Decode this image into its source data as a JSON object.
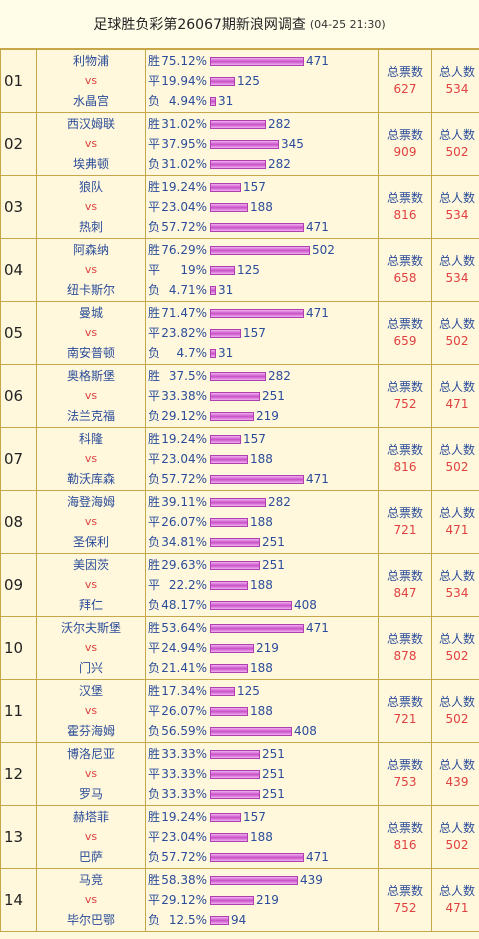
{
  "header": {
    "title": "足球胜负彩第26067期新浪网调查",
    "date": "(04-25 21:30)"
  },
  "labels": {
    "win": "胜",
    "draw": "平",
    "loss": "负",
    "total_votes": "总票数",
    "total_people": "总人数",
    "vs": "vs"
  },
  "matches": [
    {
      "num": "01",
      "home": "利物浦",
      "away": "水晶宫",
      "win": {
        "pct": "75.12%",
        "count": "471"
      },
      "draw": {
        "pct": "19.94%",
        "count": "125"
      },
      "loss": {
        "pct": "4.94%",
        "count": "31"
      },
      "votes": "627",
      "people": "534"
    },
    {
      "num": "02",
      "home": "西汉姆联",
      "away": "埃弗顿",
      "win": {
        "pct": "31.02%",
        "count": "282"
      },
      "draw": {
        "pct": "37.95%",
        "count": "345"
      },
      "loss": {
        "pct": "31.02%",
        "count": "282"
      },
      "votes": "909",
      "people": "502"
    },
    {
      "num": "03",
      "home": "狼队",
      "away": "热刺",
      "win": {
        "pct": "19.24%",
        "count": "157"
      },
      "draw": {
        "pct": "23.04%",
        "count": "188"
      },
      "loss": {
        "pct": "57.72%",
        "count": "471"
      },
      "votes": "816",
      "people": "534"
    },
    {
      "num": "04",
      "home": "阿森纳",
      "away": "纽卡斯尔",
      "win": {
        "pct": "76.29%",
        "count": "502"
      },
      "draw": {
        "pct": "19%",
        "count": "125"
      },
      "loss": {
        "pct": "4.71%",
        "count": "31"
      },
      "votes": "658",
      "people": "534"
    },
    {
      "num": "05",
      "home": "曼城",
      "away": "南安普顿",
      "win": {
        "pct": "71.47%",
        "count": "471"
      },
      "draw": {
        "pct": "23.82%",
        "count": "157"
      },
      "loss": {
        "pct": "4.7%",
        "count": "31"
      },
      "votes": "659",
      "people": "502"
    },
    {
      "num": "06",
      "home": "奥格斯堡",
      "away": "法兰克福",
      "win": {
        "pct": "37.5%",
        "count": "282"
      },
      "draw": {
        "pct": "33.38%",
        "count": "251"
      },
      "loss": {
        "pct": "29.12%",
        "count": "219"
      },
      "votes": "752",
      "people": "471"
    },
    {
      "num": "07",
      "home": "科隆",
      "away": "勒沃库森",
      "win": {
        "pct": "19.24%",
        "count": "157"
      },
      "draw": {
        "pct": "23.04%",
        "count": "188"
      },
      "loss": {
        "pct": "57.72%",
        "count": "471"
      },
      "votes": "816",
      "people": "502"
    },
    {
      "num": "08",
      "home": "海登海姆",
      "away": "圣保利",
      "win": {
        "pct": "39.11%",
        "count": "282"
      },
      "draw": {
        "pct": "26.07%",
        "count": "188"
      },
      "loss": {
        "pct": "34.81%",
        "count": "251"
      },
      "votes": "721",
      "people": "471"
    },
    {
      "num": "09",
      "home": "美因茨",
      "away": "拜仁",
      "win": {
        "pct": "29.63%",
        "count": "251"
      },
      "draw": {
        "pct": "22.2%",
        "count": "188"
      },
      "loss": {
        "pct": "48.17%",
        "count": "408"
      },
      "votes": "847",
      "people": "534"
    },
    {
      "num": "10",
      "home": "沃尔夫斯堡",
      "away": "门兴",
      "win": {
        "pct": "53.64%",
        "count": "471"
      },
      "draw": {
        "pct": "24.94%",
        "count": "219"
      },
      "loss": {
        "pct": "21.41%",
        "count": "188"
      },
      "votes": "878",
      "people": "502"
    },
    {
      "num": "11",
      "home": "汉堡",
      "away": "霍芬海姆",
      "win": {
        "pct": "17.34%",
        "count": "125"
      },
      "draw": {
        "pct": "26.07%",
        "count": "188"
      },
      "loss": {
        "pct": "56.59%",
        "count": "408"
      },
      "votes": "721",
      "people": "502"
    },
    {
      "num": "12",
      "home": "博洛尼亚",
      "away": "罗马",
      "win": {
        "pct": "33.33%",
        "count": "251"
      },
      "draw": {
        "pct": "33.33%",
        "count": "251"
      },
      "loss": {
        "pct": "33.33%",
        "count": "251"
      },
      "votes": "753",
      "people": "439"
    },
    {
      "num": "13",
      "home": "赫塔菲",
      "away": "巴萨",
      "win": {
        "pct": "19.24%",
        "count": "157"
      },
      "draw": {
        "pct": "23.04%",
        "count": "188"
      },
      "loss": {
        "pct": "57.72%",
        "count": "471"
      },
      "votes": "816",
      "people": "502"
    },
    {
      "num": "14",
      "home": "马竞",
      "away": "毕尔巴鄂",
      "win": {
        "pct": "58.38%",
        "count": "439"
      },
      "draw": {
        "pct": "29.12%",
        "count": "219"
      },
      "loss": {
        "pct": "12.5%",
        "count": "94"
      },
      "votes": "752",
      "people": "471"
    }
  ]
}
